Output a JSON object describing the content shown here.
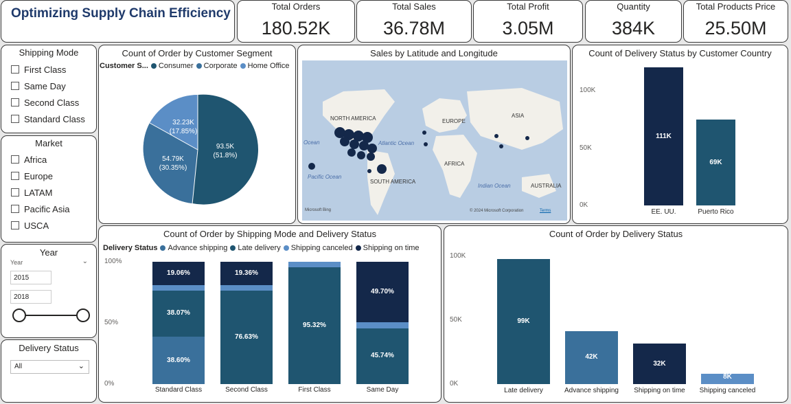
{
  "header": {
    "title": "Optimizing Supply Chain Efficiency"
  },
  "kpis": [
    {
      "label": "Total Orders",
      "value": "180.52K"
    },
    {
      "label": "Total Sales",
      "value": "36.78M"
    },
    {
      "label": "Total Profit",
      "value": "3.05M"
    },
    {
      "label": "Quantity",
      "value": "384K"
    },
    {
      "label": "Total Products Price",
      "value": "25.50M"
    }
  ],
  "filters": {
    "shipping_mode": {
      "title": "Shipping Mode",
      "options": [
        "First Class",
        "Same Day",
        "Second Class",
        "Standard Class"
      ]
    },
    "market": {
      "title": "Market",
      "options": [
        "Africa",
        "Europe",
        "LATAM",
        "Pacific Asia",
        "USCA"
      ]
    },
    "year": {
      "title": "Year",
      "sub_label": "Year",
      "from": "2015",
      "to": "2018"
    },
    "delivery_status": {
      "title": "Delivery Status",
      "selected": "All"
    }
  },
  "colors": {
    "dark": "#14284a",
    "mid": "#1f5570",
    "light": "#3a709b",
    "pale": "#5b8ec6"
  },
  "pie": {
    "title": "Count of Order by Customer Segment",
    "legend_title": "Customer S...",
    "segments": [
      {
        "name": "Consumer",
        "value_label": "93.5K",
        "pct_label": "(51.8%)"
      },
      {
        "name": "Corporate",
        "value_label": "54.79K",
        "pct_label": "(30.35%)"
      },
      {
        "name": "Home Office",
        "value_label": "32.23K",
        "pct_label": "(17.85%)"
      }
    ]
  },
  "map": {
    "title": "Sales by Latitude and Longitude",
    "labels": {
      "north_america": "NORTH AMERICA",
      "europe": "EUROPE",
      "asia": "ASIA",
      "africa": "AFRICA",
      "south_america": "SOUTH AMERICA",
      "australia": "AUSTRALIA",
      "atlantic": "Atlantic Ocean",
      "pacific": "Pacific Ocean",
      "indian": "Indian Ocean",
      "ocean_left": "Ocean"
    },
    "attribution": "© 2024 Microsoft Corporation",
    "terms": "Terms",
    "bing": "Microsoft Bing"
  },
  "chart_data": [
    {
      "type": "bar",
      "title": "Count of Delivery Status by Customer Country",
      "categories": [
        "EE. UU.",
        "Puerto Rico"
      ],
      "values": [
        111,
        69
      ],
      "value_labels": [
        "111K",
        "69K"
      ],
      "y_ticks": [
        "0K",
        "50K",
        "100K"
      ],
      "ylim": [
        0,
        120
      ]
    },
    {
      "type": "bar",
      "title": "Count of Order by Shipping Mode and Delivery Status",
      "legend_title": "Delivery Status",
      "categories": [
        "Standard Class",
        "Second Class",
        "First Class",
        "Same Day"
      ],
      "series": [
        {
          "name": "Advance shipping",
          "values": [
            38.6,
            0,
            0,
            0
          ]
        },
        {
          "name": "Late delivery",
          "values": [
            38.07,
            76.63,
            95.32,
            45.74
          ]
        },
        {
          "name": "Shipping canceled",
          "values": [
            4.27,
            4.01,
            4.68,
            4.56
          ]
        },
        {
          "name": "Shipping on time",
          "values": [
            19.06,
            19.36,
            0,
            49.7
          ]
        }
      ],
      "segment_labels": [
        [
          "38.60%",
          "38.07%",
          "",
          "19.06%"
        ],
        [
          "",
          "76.63%",
          "",
          "19.36%"
        ],
        [
          "",
          "95.32%",
          "",
          ""
        ],
        [
          "",
          "45.74%",
          "",
          "49.70%"
        ]
      ],
      "y_ticks": [
        "0%",
        "50%",
        "100%"
      ],
      "ylim": [
        0,
        100
      ]
    },
    {
      "type": "bar",
      "title": "Count of Order by Delivery Status",
      "categories": [
        "Late delivery",
        "Advance shipping",
        "Shipping on time",
        "Shipping canceled"
      ],
      "values": [
        99,
        42,
        32,
        8
      ],
      "value_labels": [
        "99K",
        "42K",
        "32K",
        "8K"
      ],
      "y_ticks": [
        "0K",
        "50K",
        "100K"
      ],
      "ylim": [
        0,
        100
      ]
    }
  ]
}
